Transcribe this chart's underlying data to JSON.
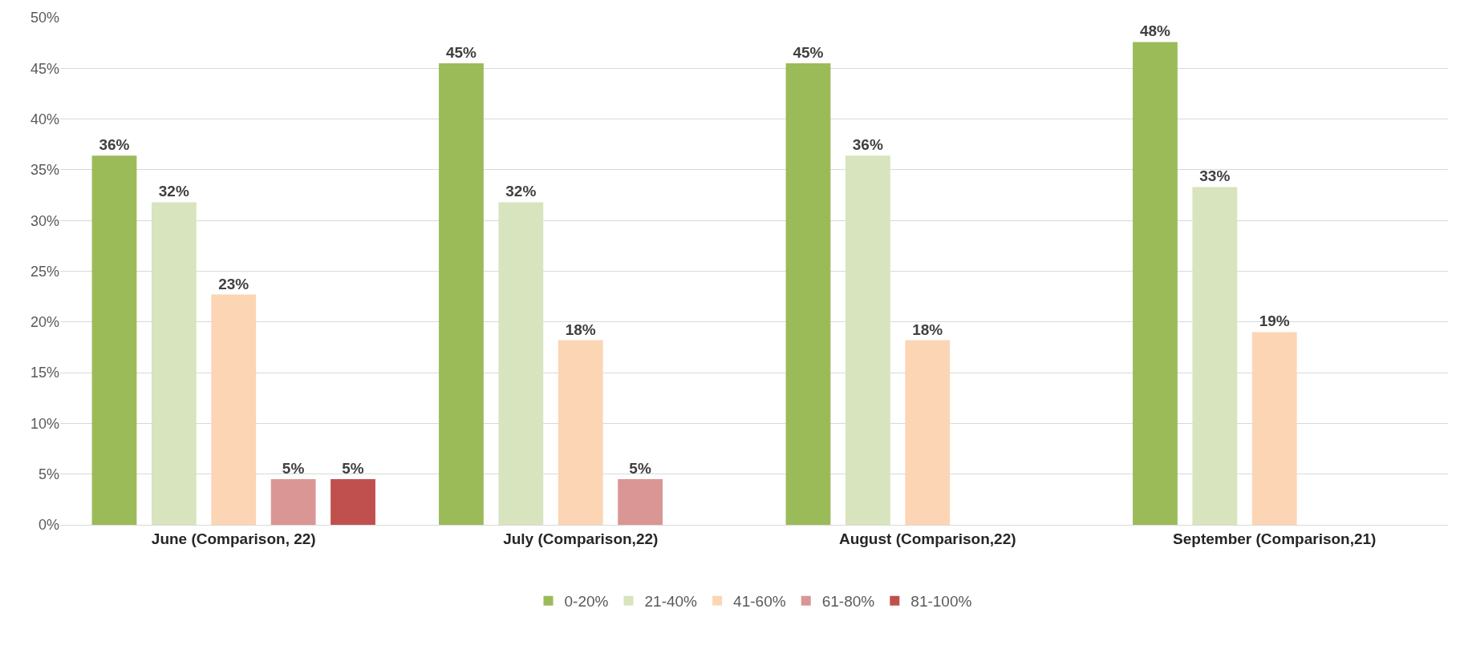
{
  "chart_data": {
    "type": "bar",
    "categories": [
      "June (Comparison, 22)",
      "July (Comparison,22)",
      "August (Comparison,22)",
      "September (Comparison,21)"
    ],
    "series": [
      {
        "name": "0-20%",
        "color": "#9bbb59",
        "values": [
          36.4,
          45.5,
          45.5,
          47.6
        ],
        "value_labels": [
          "36%",
          "45%",
          "45%",
          "48%"
        ]
      },
      {
        "name": "21-40%",
        "color": "#d7e4bd",
        "values": [
          31.8,
          31.8,
          36.4,
          33.3
        ],
        "value_labels": [
          "32%",
          "32%",
          "36%",
          "33%"
        ]
      },
      {
        "name": "41-60%",
        "color": "#fcd5b5",
        "values": [
          22.7,
          18.2,
          18.2,
          19.0
        ],
        "value_labels": [
          "23%",
          "18%",
          "18%",
          "19%"
        ]
      },
      {
        "name": "61-80%",
        "color": "#d99694",
        "values": [
          4.5,
          4.5,
          null,
          null
        ],
        "value_labels": [
          "5%",
          "5%",
          null,
          null
        ]
      },
      {
        "name": "81-100%",
        "color": "#c0504d",
        "values": [
          4.5,
          null,
          null,
          null
        ],
        "value_labels": [
          "5%",
          null,
          null,
          null
        ]
      }
    ],
    "ylim": [
      0,
      50
    ],
    "yticks": [
      {
        "value": 0,
        "label": "0%"
      },
      {
        "value": 5,
        "label": "5%"
      },
      {
        "value": 10,
        "label": "10%"
      },
      {
        "value": 15,
        "label": "15%"
      },
      {
        "value": 20,
        "label": "20%"
      },
      {
        "value": 25,
        "label": "25%"
      },
      {
        "value": 30,
        "label": "30%"
      },
      {
        "value": 35,
        "label": "35%"
      },
      {
        "value": 40,
        "label": "40%"
      },
      {
        "value": 45,
        "label": "45%"
      },
      {
        "value": 50,
        "label": "50%"
      }
    ],
    "grid": "y",
    "legend": "bottom"
  }
}
